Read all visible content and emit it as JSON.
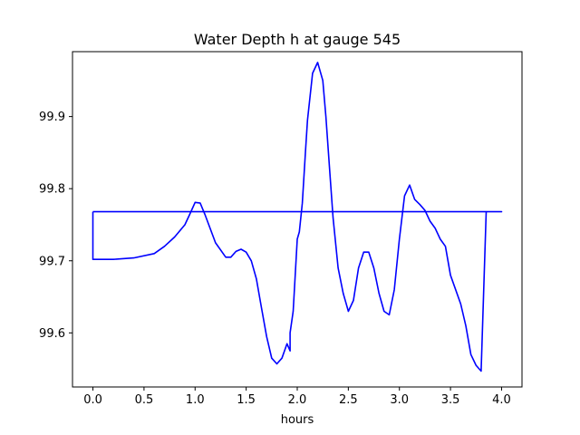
{
  "chart_data": {
    "type": "line",
    "title": "Water Depth h at gauge 545",
    "xlabel": "hours",
    "ylabel": "",
    "xlim": [
      -0.2,
      4.2
    ],
    "ylim": [
      99.525,
      99.99
    ],
    "xticks": [
      0.0,
      0.5,
      1.0,
      1.5,
      2.0,
      2.5,
      3.0,
      3.5,
      4.0
    ],
    "xtick_labels": [
      "0.0",
      "0.5",
      "1.0",
      "1.5",
      "2.0",
      "2.5",
      "3.0",
      "3.5",
      "4.0"
    ],
    "yticks": [
      99.6,
      99.7,
      99.8,
      99.9
    ],
    "ytick_labels": [
      "99.6",
      "99.7",
      "99.8",
      "99.9"
    ],
    "grid": false,
    "colors": {
      "line": "#0000ff"
    },
    "series": [
      {
        "x": [
          0.0,
          0.0,
          0.2,
          0.4,
          0.6,
          0.7,
          0.8,
          0.9,
          0.95,
          1.0,
          1.05,
          1.1,
          1.2,
          1.3,
          1.35,
          1.4,
          1.45,
          1.5,
          1.55,
          1.6,
          1.65,
          1.7,
          1.75,
          1.8,
          1.85,
          1.9,
          1.93,
          1.93,
          1.96,
          2.0,
          2.02,
          2.05,
          2.08,
          2.1,
          2.15,
          2.2,
          2.25,
          2.28,
          2.32,
          2.35,
          2.4,
          2.45,
          2.5,
          2.55,
          2.6,
          2.65,
          2.7,
          2.75,
          2.8,
          2.85,
          2.9,
          2.95,
          3.0,
          3.05,
          3.1,
          3.15,
          3.2,
          3.25,
          3.3,
          3.35,
          3.4,
          3.45,
          3.5,
          3.6,
          3.65,
          3.7,
          3.75,
          3.8,
          3.85,
          3.9,
          3.95,
          4.0,
          0.0
        ],
        "y": [
          99.768,
          99.702,
          99.702,
          99.704,
          99.71,
          99.72,
          99.733,
          99.75,
          99.765,
          99.781,
          99.78,
          99.763,
          99.725,
          99.705,
          99.705,
          99.713,
          99.716,
          99.712,
          99.7,
          99.675,
          99.635,
          99.595,
          99.565,
          99.557,
          99.565,
          99.585,
          99.575,
          99.6,
          99.63,
          99.73,
          99.74,
          99.78,
          99.85,
          99.895,
          99.96,
          99.975,
          99.95,
          99.9,
          99.82,
          99.76,
          99.69,
          99.655,
          99.63,
          99.645,
          99.69,
          99.712,
          99.712,
          99.69,
          99.655,
          99.63,
          99.625,
          99.66,
          99.73,
          99.79,
          99.805,
          99.785,
          99.778,
          99.77,
          99.755,
          99.745,
          99.73,
          99.72,
          99.68,
          99.64,
          99.61,
          99.57,
          99.555,
          99.547,
          99.768,
          99.768,
          99.768,
          99.768,
          99.768
        ]
      }
    ]
  }
}
